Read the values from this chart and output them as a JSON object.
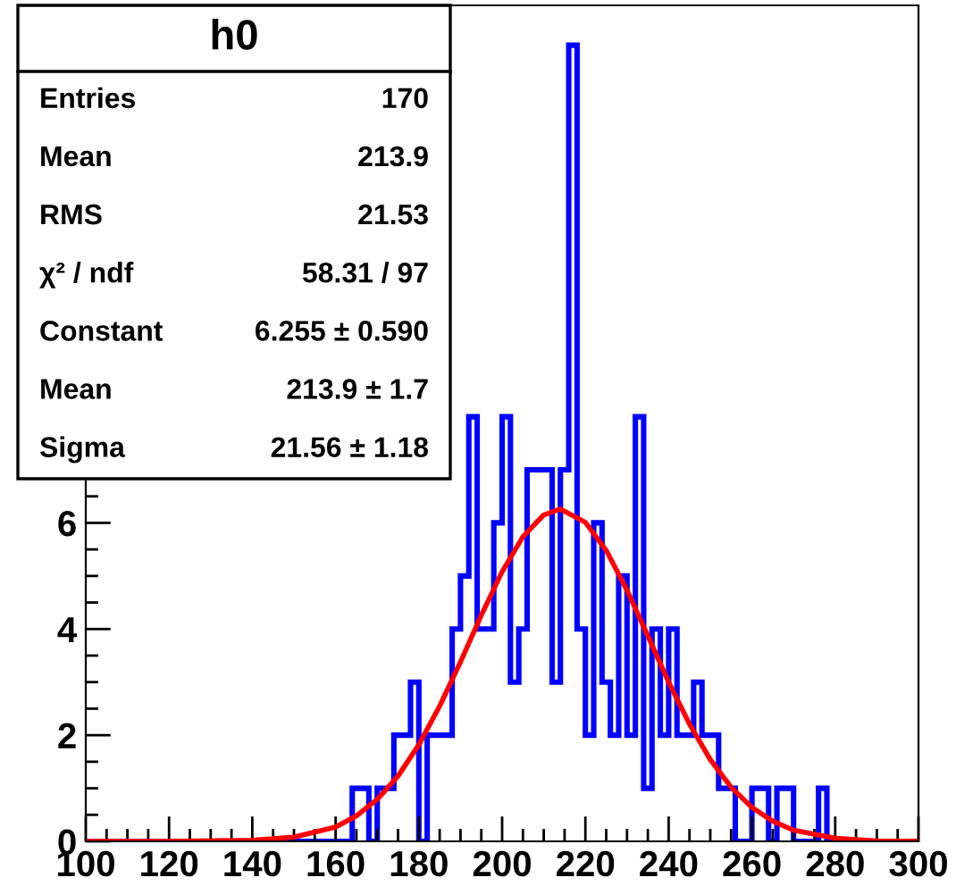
{
  "chart_data": {
    "type": "histogram",
    "title": "h0",
    "xlim": [
      100,
      300
    ],
    "ylim": [
      0,
      15.75
    ],
    "xticks": [
      100,
      120,
      140,
      160,
      180,
      200,
      220,
      240,
      260,
      280,
      300
    ],
    "yticks": [
      0,
      2,
      4,
      6
    ],
    "grid": false,
    "legend": false,
    "annotations": [
      "Entries",
      "170",
      "Mean",
      "213.9",
      "RMS",
      "21.53",
      "χ² / ndf",
      "58.31 / 97",
      "Constant",
      "6.255 ± 0.590",
      "Mean",
      "213.9 ± 1.7",
      "Sigma",
      "21.56 ± 1.18"
    ],
    "series": [
      {
        "color": "#0000ff",
        "bins": [
          100,
          102,
          104,
          106,
          108,
          110,
          112,
          114,
          116,
          118,
          120,
          122,
          124,
          126,
          128,
          130,
          132,
          134,
          136,
          138,
          140,
          142,
          144,
          146,
          148,
          150,
          152,
          154,
          156,
          158,
          160,
          162,
          164,
          166,
          168,
          170,
          172,
          174,
          176,
          178,
          180,
          182,
          184,
          186,
          188,
          190,
          192,
          194,
          196,
          198,
          200,
          202,
          204,
          206,
          208,
          210,
          212,
          214,
          216,
          218,
          220,
          222,
          224,
          226,
          228,
          230,
          232,
          234,
          236,
          238,
          240,
          242,
          244,
          246,
          248,
          250,
          252,
          254,
          256,
          258,
          260,
          262,
          264,
          266,
          268,
          270,
          272,
          274,
          276,
          278,
          280,
          282,
          284,
          286,
          288,
          290,
          292,
          294,
          296,
          298,
          300
        ],
        "values": [
          0,
          0,
          0,
          0,
          0,
          0,
          0,
          0,
          0,
          0,
          0,
          0,
          0,
          0,
          0,
          0,
          0,
          0,
          0,
          0,
          0,
          0,
          0,
          0,
          0,
          0,
          0,
          0,
          0,
          0,
          0,
          0,
          1,
          1,
          0,
          1,
          1,
          2,
          2,
          3,
          0,
          2,
          2,
          2,
          4,
          5,
          8,
          4,
          4,
          6,
          8,
          3,
          4,
          7,
          7,
          7,
          3,
          7,
          15,
          4,
          2,
          6,
          3,
          2,
          5,
          2,
          8,
          1,
          4,
          2,
          4,
          2,
          2,
          3,
          2,
          2,
          1,
          1,
          0,
          0,
          1,
          1,
          0,
          1,
          1,
          0,
          0,
          0,
          1,
          0,
          0,
          0,
          0,
          0,
          0,
          0,
          0,
          0,
          0,
          0
        ]
      },
      {
        "type": "line",
        "color": "#ff0000",
        "x": [
          100,
          120,
          140,
          150,
          160,
          165,
          170,
          175,
          180,
          185,
          190,
          195,
          200,
          205,
          210,
          214,
          220,
          225,
          230,
          235,
          240,
          245,
          250,
          255,
          260,
          265,
          270,
          280,
          290,
          300
        ],
        "values": [
          0,
          0,
          0.02,
          0.08,
          0.27,
          0.48,
          0.79,
          1.23,
          1.82,
          2.55,
          3.38,
          4.26,
          5.08,
          5.74,
          6.15,
          6.26,
          6.01,
          5.48,
          4.73,
          3.87,
          3.0,
          2.21,
          1.54,
          1.02,
          0.64,
          0.38,
          0.21,
          0.06,
          0.01,
          0
        ]
      }
    ]
  }
}
